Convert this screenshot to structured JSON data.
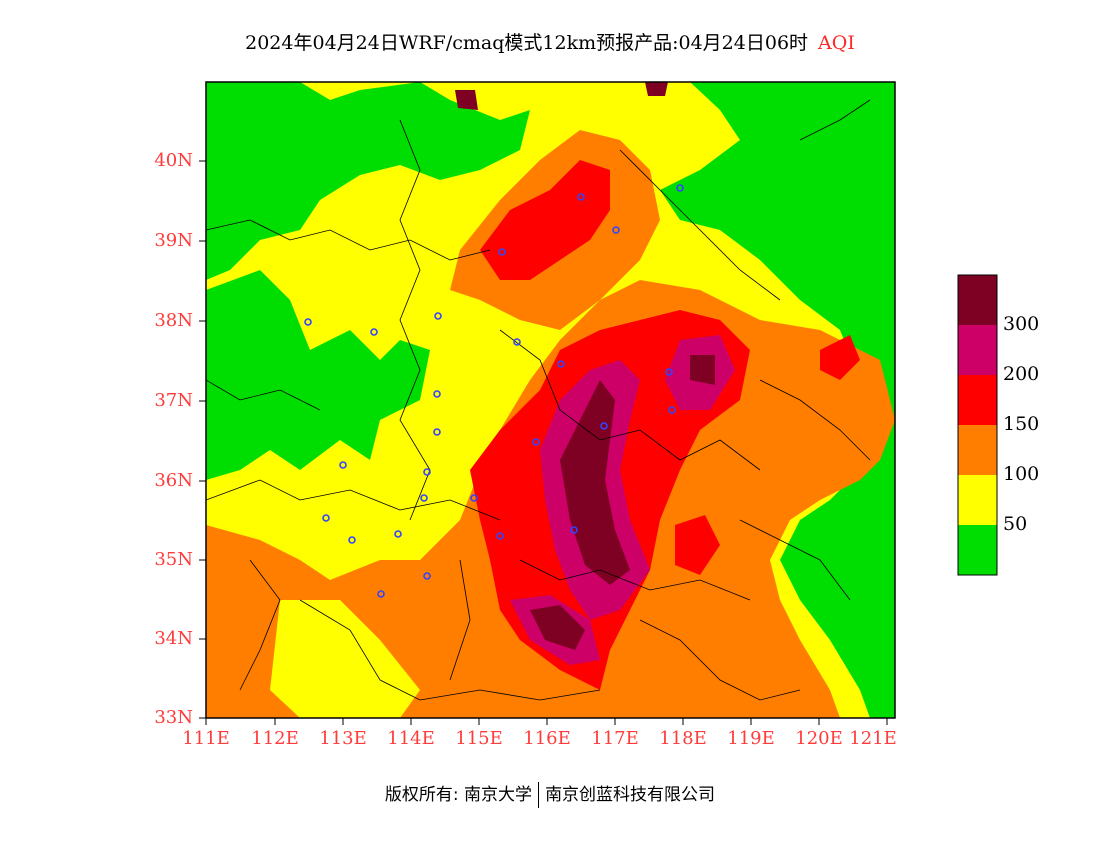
{
  "title": {
    "main": "2024年04月24日WRF/cmaq模式12km预报产品:04月24日06时",
    "variable": "AQI"
  },
  "axes": {
    "lat_labels": [
      "40N",
      "39N",
      "38N",
      "37N",
      "36N",
      "35N",
      "34N",
      "33N"
    ],
    "lon_labels": [
      "111E",
      "112E",
      "113E",
      "114E",
      "115E",
      "116E",
      "117E",
      "118E",
      "119E",
      "120E",
      "121E"
    ]
  },
  "legend": {
    "levels": [
      {
        "label": "",
        "color": "#00dd00"
      },
      {
        "label": "50",
        "color": "#ffff00"
      },
      {
        "label": "100",
        "color": "#ff7e00"
      },
      {
        "label": "150",
        "color": "#ff0000"
      },
      {
        "label": "200",
        "color": "#cc0066"
      },
      {
        "label": "300",
        "color": "#7e0023"
      }
    ]
  },
  "footer": {
    "left": "版权所有: 南京大学",
    "right": "南京创蓝科技有限公司"
  }
}
